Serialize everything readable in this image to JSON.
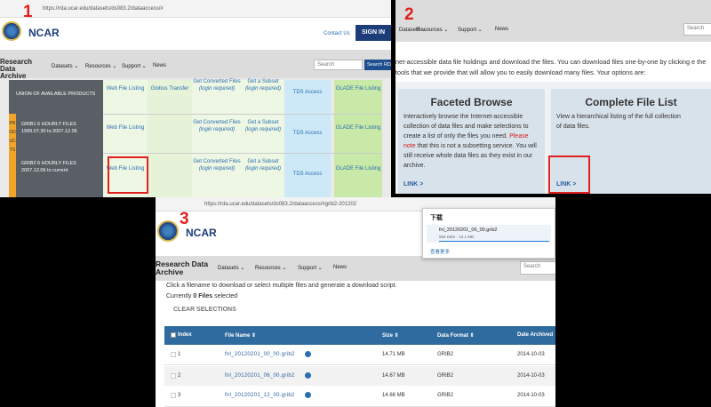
{
  "panel1": {
    "number": "1",
    "url": "https://rda.ucar.edu/datasets/ds083.2/dataaccess/#",
    "logo": "NCAR",
    "contact": "Contact Us",
    "sign_in": "SIGN IN",
    "site_title": "Research Data Archive",
    "nav": [
      "Datasets",
      "Resources",
      "Support",
      "News"
    ],
    "search_placeholder": "Search",
    "search_button": "Search RDA",
    "side_label": "PRODUCTS",
    "header": {
      "product": "UNION OF AVAILABLE PRODUCTS",
      "web": "Web File Listing",
      "globus": "Globus Transfer",
      "converted": "Get Converted Files",
      "converted_note": "(login required)",
      "subset": "Get a Subset",
      "subset_note": "(login required)",
      "tds": "TDS Access",
      "glade": "GLADE File Listing"
    },
    "rows": [
      {
        "product": "GRIB1 6 HOURLY FILES 1999.07.30 to 2007.12.06",
        "web": "Web File Listing",
        "converted": "Get Converted Files",
        "converted_note": "(login required)",
        "subset": "Get a Subset",
        "subset_note": "(login required)",
        "tds": "TDS Access",
        "glade": "GLADE File Listing"
      },
      {
        "product": "GRIB2 6 HOURLY FILES 2007.12.06 to current",
        "web": "Web File Listing",
        "converted": "Get Converted Files",
        "converted_note": "(login required)",
        "subset": "Get a Subset",
        "subset_note": "(login required)",
        "tds": "TDS Access",
        "glade": "GLADE File Listing"
      }
    ]
  },
  "panel2": {
    "number": "2",
    "nav": [
      "Datasets",
      "Resources",
      "Support",
      "News"
    ],
    "search_placeholder": "Search",
    "intro": "net-accessible data file holdings and download the files. You can download files one-by-one by clicking e the tools that we provide that will allow you to easily download many files. Your options are:",
    "cards": [
      {
        "title": "Faceted Browse",
        "text": "Interactively browse the Internet-accessible collection of data files and make selections to create a list of only the files you need.",
        "note": "Please note",
        "text2": "that this is not a subsetting service. You will still receive whole data files as they exist in our archive.",
        "link": "LINK >"
      },
      {
        "title": "Complete File List",
        "text": "View a hierarchical listing of the full collection of data files.",
        "link": "LINK >"
      }
    ]
  },
  "panel3": {
    "number": "3",
    "url": "https://rda.ucar.edu/datasets/ds083.2/dataaccess/#grib2-201202",
    "logo": "NCAR",
    "site_title": "Research Data Archive",
    "nav": [
      "Datasets",
      "Resources",
      "Support",
      "News"
    ],
    "search_placeholder": "Search",
    "download": {
      "title": "下载",
      "file": "fnl_20120201_06_00.grib2",
      "progress": "965 KB/s - 12.1 MB",
      "more": "查看更多"
    },
    "instructions": "Click a filename to download or select multiple files and generate a download script.",
    "selected_prefix": "Currently",
    "selected_count": "0 Files",
    "selected_suffix": "selected",
    "clear": "CLEAR SELECTIONS",
    "columns": [
      "Index",
      "File Name",
      "Size",
      "Data Format",
      "Date Archived"
    ],
    "rows": [
      [
        "1",
        "fnl_20120201_00_00.grib2",
        "14.71 MB",
        "GRIB2",
        "2014-10-03"
      ],
      [
        "2",
        "fnl_20120201_06_00.grib2",
        "14.67 MB",
        "GRIB2",
        "2014-10-03"
      ],
      [
        "3",
        "fnl_20120201_12_00.grib2",
        "14.66 MB",
        "GRIB2",
        "2014-10-03"
      ]
    ]
  }
}
